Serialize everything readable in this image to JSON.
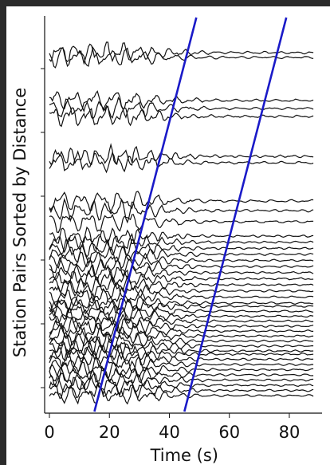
{
  "chart_data": {
    "type": "line",
    "xlabel": "Time (s)",
    "ylabel": "Station Pairs Sorted by Distance",
    "xlim": [
      0,
      90
    ],
    "x_ticks": [
      0,
      20,
      40,
      60,
      80
    ],
    "x_tick_labels": [
      "0",
      "20",
      "40",
      "60",
      "80"
    ],
    "y_ticks_count": 6,
    "grid": false,
    "legend": "none",
    "trace_color": "#111111",
    "moveout_color": "#1a1ac8",
    "moveout_lines": [
      {
        "x_bottom": 15,
        "x_top": 49
      },
      {
        "x_bottom": 45,
        "x_top": 79
      }
    ],
    "trace_groups": [
      {
        "count": 2
      },
      {
        "count": 3
      },
      {
        "count": 2
      },
      {
        "count": 3
      },
      {
        "count": 12
      },
      {
        "count": 10
      },
      {
        "count": 9
      }
    ]
  }
}
